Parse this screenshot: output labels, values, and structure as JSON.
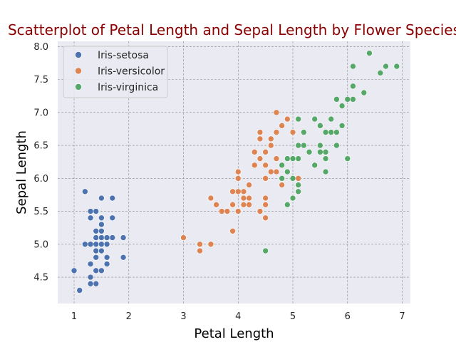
{
  "chart_data": {
    "type": "scatter",
    "title": "Scatterplot of Petal Length and Sepal Length by Flower Species",
    "xlabel": "Petal Length",
    "ylabel": "Sepal Length",
    "xlim": [
      0.7,
      7.15
    ],
    "ylim": [
      4.1,
      8.08
    ],
    "xticks": [
      1,
      2,
      3,
      4,
      5,
      6,
      7
    ],
    "yticks": [
      4.5,
      5.0,
      5.5,
      6.0,
      6.5,
      7.0,
      7.5,
      8.0
    ],
    "grid": true,
    "legend_position": "top-left",
    "background_color": "#eaeaf2",
    "series": [
      {
        "name": "Iris-setosa",
        "color": "#4c72b0",
        "points": [
          [
            1.4,
            5.1
          ],
          [
            1.4,
            4.9
          ],
          [
            1.3,
            4.7
          ],
          [
            1.5,
            4.6
          ],
          [
            1.4,
            5.0
          ],
          [
            1.7,
            5.4
          ],
          [
            1.4,
            4.6
          ],
          [
            1.5,
            5.0
          ],
          [
            1.4,
            4.4
          ],
          [
            1.5,
            4.9
          ],
          [
            1.5,
            5.4
          ],
          [
            1.6,
            4.8
          ],
          [
            1.4,
            4.8
          ],
          [
            1.1,
            4.3
          ],
          [
            1.2,
            5.8
          ],
          [
            1.5,
            5.7
          ],
          [
            1.3,
            5.4
          ],
          [
            1.4,
            5.1
          ],
          [
            1.7,
            5.7
          ],
          [
            1.5,
            5.1
          ],
          [
            1.7,
            5.4
          ],
          [
            1.5,
            5.1
          ],
          [
            1.0,
            4.6
          ],
          [
            1.7,
            5.1
          ],
          [
            1.9,
            4.8
          ],
          [
            1.6,
            5.0
          ],
          [
            1.6,
            5.0
          ],
          [
            1.5,
            5.2
          ],
          [
            1.4,
            5.2
          ],
          [
            1.6,
            4.7
          ],
          [
            1.6,
            4.8
          ],
          [
            1.5,
            5.4
          ],
          [
            1.5,
            5.2
          ],
          [
            1.4,
            5.5
          ],
          [
            1.5,
            4.9
          ],
          [
            1.2,
            5.0
          ],
          [
            1.3,
            5.5
          ],
          [
            1.5,
            4.9
          ],
          [
            1.3,
            4.4
          ],
          [
            1.5,
            5.1
          ],
          [
            1.3,
            5.0
          ],
          [
            1.3,
            4.5
          ],
          [
            1.3,
            4.4
          ],
          [
            1.6,
            5.0
          ],
          [
            1.9,
            5.1
          ],
          [
            1.4,
            4.8
          ],
          [
            1.6,
            5.1
          ],
          [
            1.4,
            4.6
          ],
          [
            1.5,
            5.3
          ],
          [
            1.4,
            5.0
          ]
        ]
      },
      {
        "name": "Iris-versicolor",
        "color": "#dd8452",
        "points": [
          [
            4.7,
            7.0
          ],
          [
            4.5,
            6.4
          ],
          [
            4.9,
            6.9
          ],
          [
            4.0,
            5.5
          ],
          [
            4.6,
            6.5
          ],
          [
            4.5,
            5.7
          ],
          [
            4.7,
            6.3
          ],
          [
            3.3,
            4.9
          ],
          [
            4.6,
            6.6
          ],
          [
            3.9,
            5.2
          ],
          [
            3.5,
            5.0
          ],
          [
            4.2,
            5.9
          ],
          [
            4.0,
            6.0
          ],
          [
            4.7,
            6.1
          ],
          [
            3.6,
            5.6
          ],
          [
            4.4,
            6.7
          ],
          [
            4.5,
            5.6
          ],
          [
            4.1,
            5.8
          ],
          [
            4.5,
            6.2
          ],
          [
            3.9,
            5.6
          ],
          [
            4.8,
            5.9
          ],
          [
            4.0,
            6.1
          ],
          [
            4.9,
            6.3
          ],
          [
            4.7,
            6.1
          ],
          [
            4.3,
            6.4
          ],
          [
            4.4,
            6.6
          ],
          [
            4.8,
            6.8
          ],
          [
            5.0,
            6.7
          ],
          [
            4.5,
            6.0
          ],
          [
            3.5,
            5.7
          ],
          [
            3.8,
            5.5
          ],
          [
            3.7,
            5.5
          ],
          [
            3.9,
            5.8
          ],
          [
            5.1,
            6.0
          ],
          [
            4.5,
            5.4
          ],
          [
            4.5,
            6.0
          ],
          [
            4.7,
            6.7
          ],
          [
            4.4,
            6.3
          ],
          [
            4.1,
            5.6
          ],
          [
            4.0,
            5.5
          ],
          [
            4.4,
            5.5
          ],
          [
            4.6,
            6.1
          ],
          [
            4.0,
            5.8
          ],
          [
            3.3,
            5.0
          ],
          [
            4.2,
            5.6
          ],
          [
            4.2,
            5.7
          ],
          [
            4.2,
            5.7
          ],
          [
            4.3,
            6.2
          ],
          [
            3.0,
            5.1
          ],
          [
            4.1,
            5.7
          ]
        ]
      },
      {
        "name": "Iris-virginica",
        "color": "#55a868",
        "points": [
          [
            6.0,
            6.3
          ],
          [
            5.1,
            5.8
          ],
          [
            5.9,
            7.1
          ],
          [
            5.6,
            6.3
          ],
          [
            5.8,
            6.5
          ],
          [
            6.6,
            7.6
          ],
          [
            4.5,
            4.9
          ],
          [
            6.3,
            7.3
          ],
          [
            5.8,
            6.7
          ],
          [
            6.1,
            7.2
          ],
          [
            5.1,
            6.5
          ],
          [
            5.3,
            6.4
          ],
          [
            5.5,
            6.8
          ],
          [
            5.0,
            5.7
          ],
          [
            5.1,
            5.8
          ],
          [
            5.3,
            6.4
          ],
          [
            5.5,
            6.5
          ],
          [
            6.7,
            7.7
          ],
          [
            6.9,
            7.7
          ],
          [
            5.0,
            6.0
          ],
          [
            5.7,
            6.9
          ],
          [
            4.9,
            5.6
          ],
          [
            6.7,
            7.7
          ],
          [
            4.9,
            6.3
          ],
          [
            5.7,
            6.7
          ],
          [
            6.0,
            7.2
          ],
          [
            4.8,
            6.2
          ],
          [
            4.9,
            6.1
          ],
          [
            5.6,
            6.4
          ],
          [
            5.8,
            7.2
          ],
          [
            6.1,
            7.4
          ],
          [
            6.4,
            7.9
          ],
          [
            5.6,
            6.4
          ],
          [
            5.1,
            6.3
          ],
          [
            5.6,
            6.1
          ],
          [
            6.1,
            7.7
          ],
          [
            5.6,
            6.3
          ],
          [
            5.5,
            6.4
          ],
          [
            4.8,
            6.0
          ],
          [
            5.4,
            6.9
          ],
          [
            5.6,
            6.7
          ],
          [
            5.1,
            6.9
          ],
          [
            5.1,
            5.8
          ],
          [
            5.9,
            6.8
          ],
          [
            5.7,
            6.7
          ],
          [
            5.2,
            6.7
          ],
          [
            5.0,
            6.3
          ],
          [
            5.2,
            6.5
          ],
          [
            5.4,
            6.2
          ],
          [
            5.1,
            5.9
          ]
        ]
      }
    ]
  }
}
